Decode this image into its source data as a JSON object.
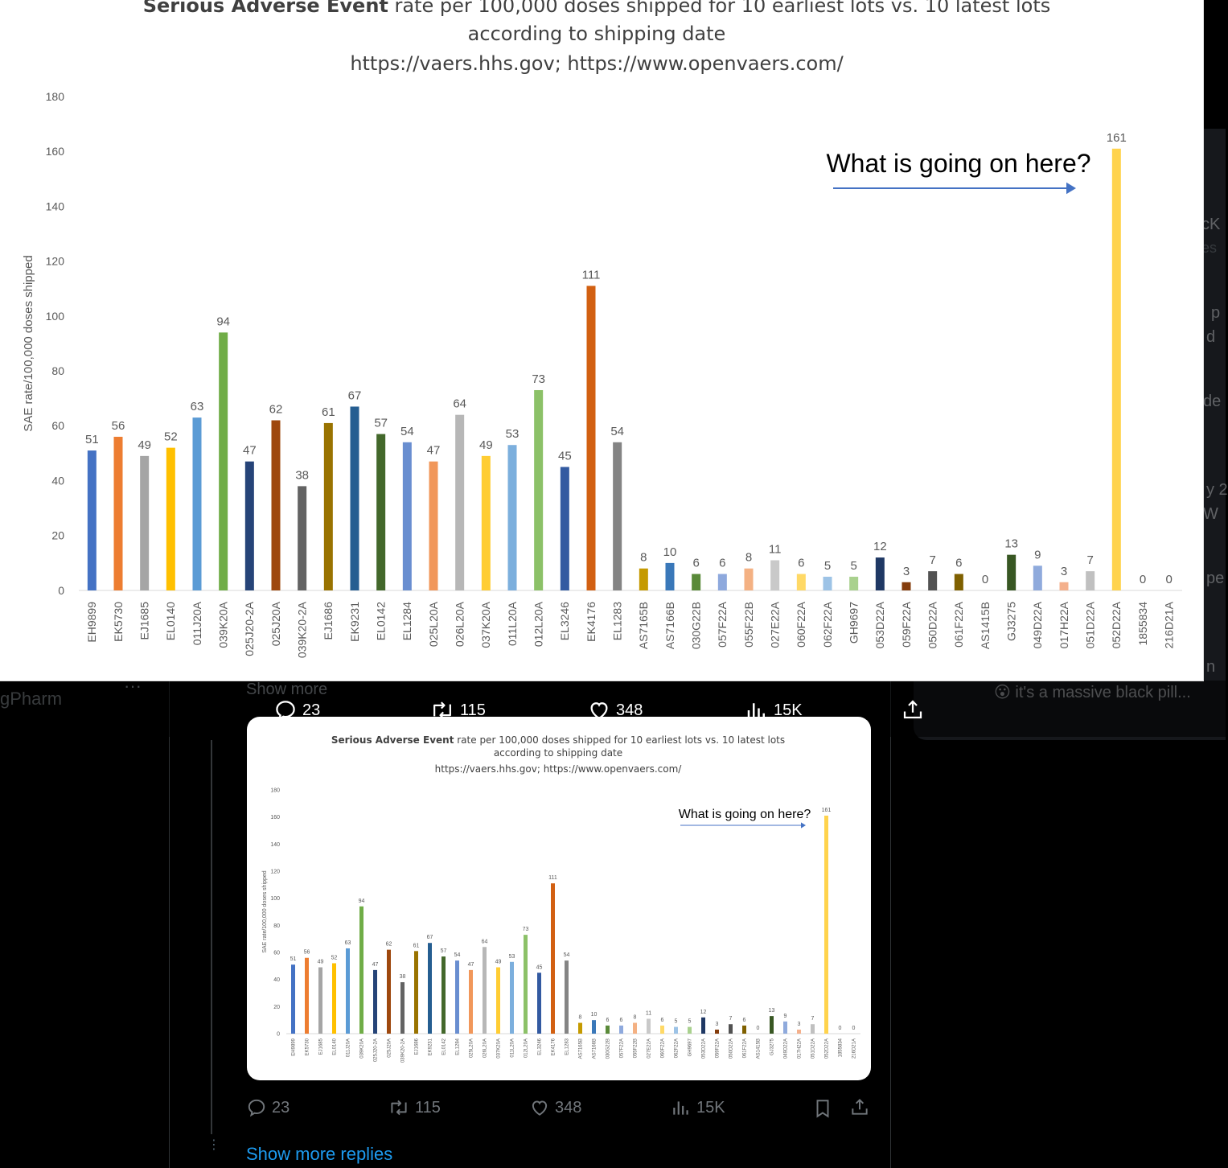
{
  "sidebar_left": {
    "name_fragment": "gPharm"
  },
  "sidebar_right": {
    "fragments": [
      "cK",
      "es",
      "p",
      "d",
      "de",
      "y 2",
      "W",
      "pe",
      "n"
    ],
    "reply_text": "it's a massive black pill..."
  },
  "tweet": {
    "show_more_label": "Show more",
    "show_more_replies_label": "Show more replies",
    "actions": {
      "replies": "23",
      "reposts": "115",
      "likes": "348",
      "views": "15K"
    }
  },
  "chart_data": {
    "type": "bar",
    "title_bold": "Serious Adverse Event",
    "title_rest": " rate per 100,000 doses shipped for 10 earliest lots vs. 10 latest lots",
    "subtitle": "according to shipping date",
    "source": "https://vaers.hhs.gov; https://www.openvaers.com/",
    "ylabel": "SAE rate/100,000 doses shipped",
    "xlabel": "",
    "ylim": [
      0,
      180
    ],
    "yticks": [
      0,
      20,
      40,
      60,
      80,
      100,
      120,
      140,
      160,
      180
    ],
    "grid": false,
    "annotation": "What is going on here?",
    "categories": [
      "EH9899",
      "EK5730",
      "EJ1685",
      "EL0140",
      "011J20A",
      "039K20A",
      "025J20-2A",
      "025J20A",
      "039K20-2A",
      "EJ1686",
      "EK9231",
      "EL0142",
      "EL1284",
      "025L20A",
      "026L20A",
      "037K20A",
      "011L20A",
      "012L20A",
      "EL3246",
      "EK4176",
      "EL1283",
      "AS7165B",
      "AS7166B",
      "030G22B",
      "057F22A",
      "055F22B",
      "027E22A",
      "060F22A",
      "062F22A",
      "GH9697",
      "053D22A",
      "059F22A",
      "050D22A",
      "061F22A",
      "AS1415B",
      "GJ3275",
      "049D22A",
      "017H22A",
      "051D22A",
      "052D22A",
      "1855834",
      "216D21A"
    ],
    "values": [
      51,
      56,
      49,
      52,
      63,
      94,
      47,
      62,
      38,
      61,
      67,
      57,
      54,
      47,
      64,
      49,
      53,
      73,
      45,
      111,
      54,
      8,
      10,
      6,
      6,
      8,
      11,
      6,
      5,
      5,
      12,
      3,
      7,
      6,
      0,
      13,
      9,
      3,
      7,
      161,
      0,
      0
    ],
    "colors": [
      "#4472c4",
      "#ed7d31",
      "#a5a5a5",
      "#ffc000",
      "#5b9bd5",
      "#70ad47",
      "#264478",
      "#9e480e",
      "#636363",
      "#997300",
      "#255e91",
      "#43682b",
      "#698ed0",
      "#f1975a",
      "#b7b7b7",
      "#ffcd33",
      "#7cafdd",
      "#8cc168",
      "#335aa1",
      "#d26012",
      "#848484",
      "#c59a00",
      "#3a78b9",
      "#5a8a39",
      "#8ea9dd",
      "#f4b183",
      "#c9c9c9",
      "#ffd966",
      "#9dc3e6",
      "#a9d18e",
      "#1f3864",
      "#843c0c",
      "#525252",
      "#7f6000",
      "#2e75b6",
      "#385723",
      "#8faadc",
      "#f4b08c",
      "#c0c0c0",
      "#ffd34d",
      "#cccccc",
      "#cccccc"
    ]
  }
}
